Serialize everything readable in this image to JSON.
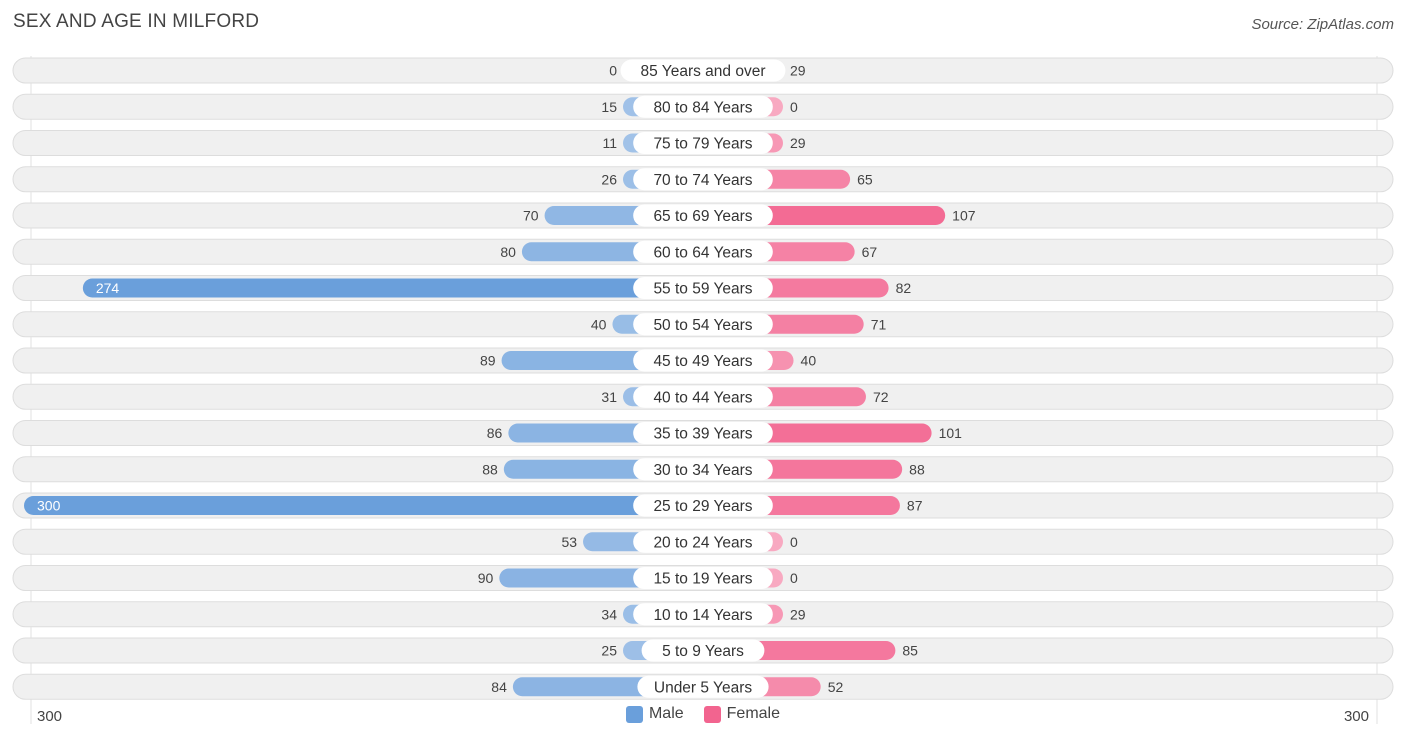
{
  "header": {
    "title": "SEX AND AGE IN MILFORD",
    "source": "Source: ZipAtlas.com"
  },
  "colors": {
    "male_strong": "#6a9fdb",
    "male_light": "#a4c4e9",
    "female_strong": "#f2648f",
    "female_light": "#f8a9c1",
    "row_background": "#f0f0f0",
    "row_border": "#dddddd"
  },
  "legend": {
    "male_label": "Male",
    "female_label": "Female"
  },
  "axis": {
    "left_label": "300",
    "right_label": "300"
  },
  "chart_data": {
    "type": "bar",
    "orientation": "horizontal-butterfly",
    "title": "SEX AND AGE IN MILFORD",
    "xlim": [
      -300,
      300
    ],
    "legend_position": "bottom-center",
    "categories": [
      "85 Years and over",
      "80 to 84 Years",
      "75 to 79 Years",
      "70 to 74 Years",
      "65 to 69 Years",
      "60 to 64 Years",
      "55 to 59 Years",
      "50 to 54 Years",
      "45 to 49 Years",
      "40 to 44 Years",
      "35 to 39 Years",
      "30 to 34 Years",
      "25 to 29 Years",
      "20 to 24 Years",
      "15 to 19 Years",
      "10 to 14 Years",
      "5 to 9 Years",
      "Under 5 Years"
    ],
    "series": [
      {
        "name": "Male",
        "values": [
          0,
          15,
          11,
          26,
          70,
          80,
          274,
          40,
          89,
          31,
          86,
          88,
          300,
          53,
          90,
          34,
          25,
          84
        ]
      },
      {
        "name": "Female",
        "values": [
          29,
          0,
          29,
          65,
          107,
          67,
          82,
          71,
          40,
          72,
          101,
          88,
          87,
          0,
          0,
          29,
          85,
          52
        ]
      }
    ]
  }
}
